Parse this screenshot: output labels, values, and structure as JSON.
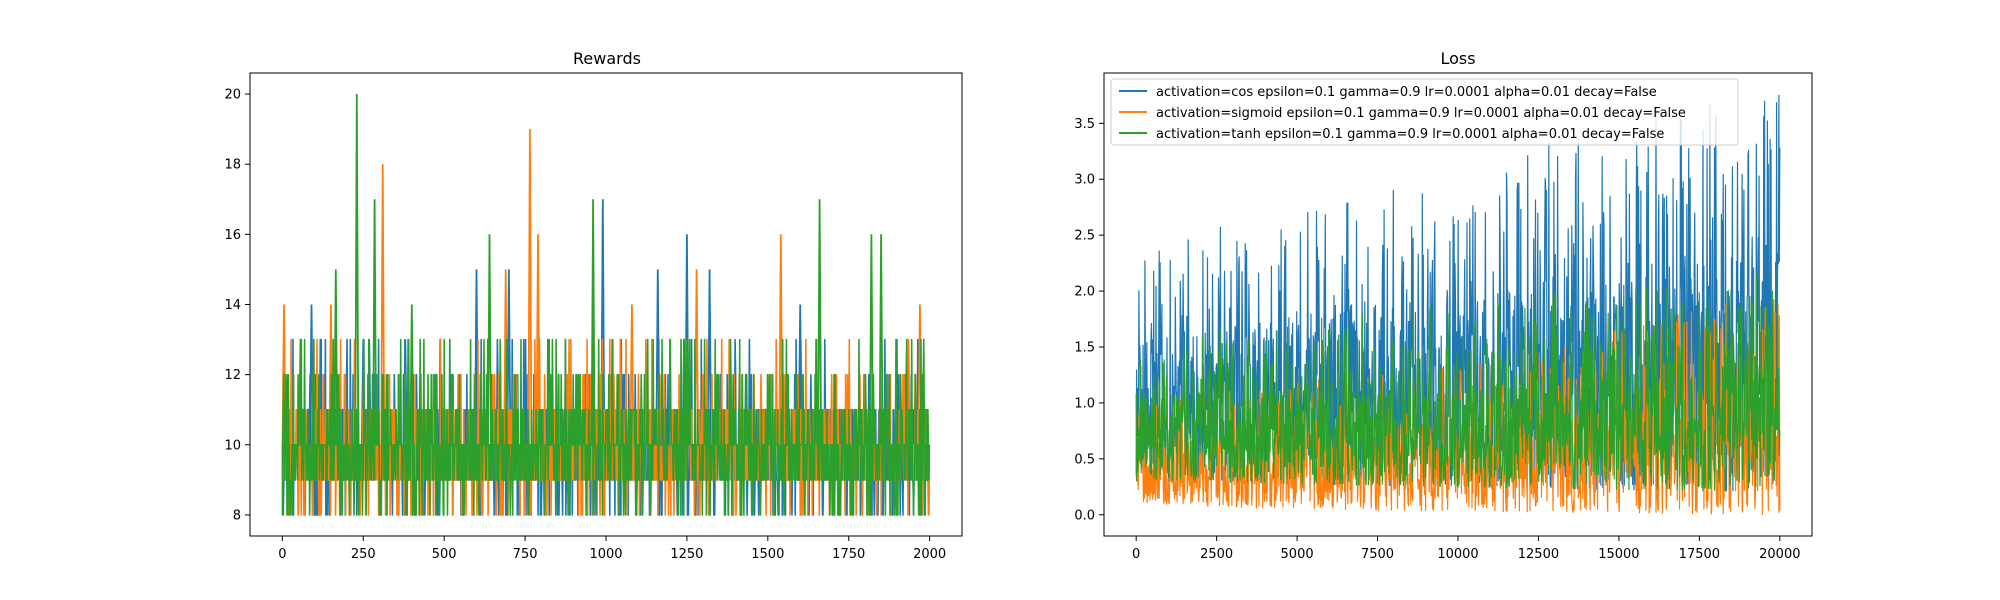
{
  "colors": {
    "cos": "#1f77b4",
    "sigmoid": "#ff7f0e",
    "tanh": "#2ca02c"
  },
  "legend_labels": [
    "activation=cos epsilon=0.1 gamma=0.9 lr=0.0001 alpha=0.01 decay=False",
    "activation=sigmoid epsilon=0.1 gamma=0.9 lr=0.0001 alpha=0.01 decay=False",
    "activation=tanh epsilon=0.1 gamma=0.9 lr=0.0001 alpha=0.01 decay=False"
  ],
  "chart_data": [
    {
      "type": "line",
      "title": "Rewards",
      "xlabel": "",
      "ylabel": "",
      "xlim": [
        -100,
        2100
      ],
      "ylim": [
        7.4,
        20.6
      ],
      "xticks": [
        0,
        250,
        500,
        750,
        1000,
        1250,
        1500,
        1750,
        2000
      ],
      "yticks": [
        8,
        10,
        12,
        14,
        16,
        18,
        20
      ],
      "legend": false,
      "x_range": [
        0,
        1999
      ],
      "series": [
        {
          "color_key": "cos",
          "range": [
            8,
            17
          ],
          "peaks": [
            [
              90,
              14
            ],
            [
              250,
              13
            ],
            [
              380,
              13
            ],
            [
              600,
              15
            ],
            [
              700,
              15
            ],
            [
              990,
              17
            ],
            [
              1160,
              15
            ],
            [
              1250,
              16
            ],
            [
              1320,
              15
            ],
            [
              1600,
              14
            ]
          ]
        },
        {
          "color_key": "sigmoid",
          "range": [
            8,
            19
          ],
          "peaks": [
            [
              5,
              14
            ],
            [
              150,
              14
            ],
            [
              310,
              18
            ],
            [
              690,
              15
            ],
            [
              765,
              19
            ],
            [
              790,
              16
            ],
            [
              1080,
              14
            ],
            [
              1280,
              15
            ],
            [
              1540,
              16
            ],
            [
              1970,
              14
            ]
          ]
        },
        {
          "color_key": "tanh",
          "range": [
            8,
            20
          ],
          "peaks": [
            [
              165,
              15
            ],
            [
              230,
              20
            ],
            [
              285,
              17
            ],
            [
              400,
              14
            ],
            [
              640,
              16
            ],
            [
              960,
              17
            ],
            [
              1660,
              17
            ],
            [
              1820,
              16
            ],
            [
              1850,
              16
            ]
          ]
        }
      ]
    },
    {
      "type": "line",
      "title": "Loss",
      "xlabel": "",
      "ylabel": "",
      "xlim": [
        -1000,
        21000
      ],
      "ylim": [
        -0.19,
        3.95
      ],
      "xticks": [
        0,
        2500,
        5000,
        7500,
        10000,
        12500,
        15000,
        17500,
        20000
      ],
      "yticks": [
        0.0,
        0.5,
        1.0,
        1.5,
        2.0,
        2.5,
        3.0,
        3.5
      ],
      "ytick_labels": [
        "0.0",
        "0.5",
        "1.0",
        "1.5",
        "2.0",
        "2.5",
        "3.0",
        "3.5"
      ],
      "legend": "upper left",
      "x_range": [
        0,
        19999
      ],
      "series": [
        {
          "color_key": "cos",
          "low": [
            [
              0,
              0.3
            ],
            [
              20000,
              0.2
            ]
          ],
          "high": [
            [
              0,
              2.4
            ],
            [
              5000,
              2.8
            ],
            [
              10000,
              3.1
            ],
            [
              15000,
              3.6
            ],
            [
              20000,
              3.8
            ]
          ]
        },
        {
          "color_key": "sigmoid",
          "low": [
            [
              0,
              0.1
            ],
            [
              5000,
              0.05
            ],
            [
              20000,
              0.0
            ]
          ],
          "high": [
            [
              0,
              1.1
            ],
            [
              10000,
              1.4
            ],
            [
              20000,
              2.0
            ]
          ]
        },
        {
          "color_key": "tanh",
          "low": [
            [
              0,
              0.3
            ],
            [
              20000,
              0.2
            ]
          ],
          "high": [
            [
              0,
              1.6
            ],
            [
              10000,
              1.9
            ],
            [
              20000,
              2.2
            ]
          ]
        }
      ]
    }
  ]
}
